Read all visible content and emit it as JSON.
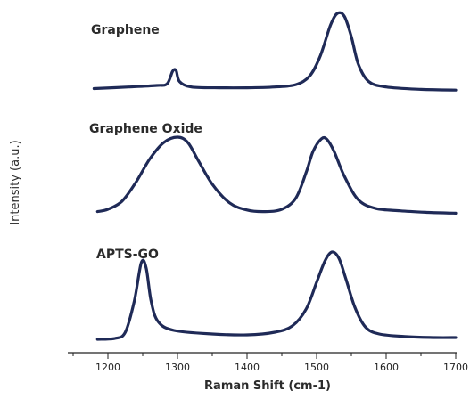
{
  "chart_data": {
    "type": "line",
    "xlabel": "Raman Shift (cm-1)",
    "ylabel": "Intensity (a.u.)",
    "xlim": [
      1180,
      1700
    ],
    "x_ticks": [
      1200,
      1300,
      1400,
      1500,
      1600,
      1700
    ],
    "y_ticks_shown": false,
    "grid": false,
    "line_color": "#1f2a57",
    "series": [
      {
        "name": "Graphene",
        "points": [
          [
            1180,
            0.04
          ],
          [
            1230,
            0.06
          ],
          [
            1270,
            0.08
          ],
          [
            1285,
            0.1
          ],
          [
            1293,
            0.26
          ],
          [
            1298,
            0.27
          ],
          [
            1303,
            0.13
          ],
          [
            1320,
            0.06
          ],
          [
            1360,
            0.05
          ],
          [
            1400,
            0.05
          ],
          [
            1440,
            0.06
          ],
          [
            1470,
            0.09
          ],
          [
            1490,
            0.2
          ],
          [
            1505,
            0.45
          ],
          [
            1520,
            0.85
          ],
          [
            1530,
            1.0
          ],
          [
            1540,
            0.96
          ],
          [
            1550,
            0.7
          ],
          [
            1560,
            0.35
          ],
          [
            1575,
            0.13
          ],
          [
            1600,
            0.06
          ],
          [
            1650,
            0.03
          ],
          [
            1700,
            0.02
          ]
        ]
      },
      {
        "name": "Graphene Oxide",
        "points": [
          [
            1185,
            0.05
          ],
          [
            1200,
            0.08
          ],
          [
            1220,
            0.18
          ],
          [
            1240,
            0.42
          ],
          [
            1260,
            0.72
          ],
          [
            1280,
            0.93
          ],
          [
            1300,
            1.0
          ],
          [
            1315,
            0.93
          ],
          [
            1330,
            0.7
          ],
          [
            1350,
            0.4
          ],
          [
            1375,
            0.16
          ],
          [
            1400,
            0.07
          ],
          [
            1425,
            0.05
          ],
          [
            1450,
            0.08
          ],
          [
            1470,
            0.22
          ],
          [
            1485,
            0.55
          ],
          [
            1495,
            0.82
          ],
          [
            1507,
            0.98
          ],
          [
            1515,
            0.97
          ],
          [
            1525,
            0.82
          ],
          [
            1540,
            0.5
          ],
          [
            1560,
            0.2
          ],
          [
            1585,
            0.09
          ],
          [
            1620,
            0.06
          ],
          [
            1660,
            0.04
          ],
          [
            1700,
            0.03
          ]
        ]
      },
      {
        "name": "APTS-GO",
        "points": [
          [
            1185,
            0.02
          ],
          [
            1210,
            0.03
          ],
          [
            1225,
            0.1
          ],
          [
            1238,
            0.45
          ],
          [
            1248,
            0.88
          ],
          [
            1255,
            0.82
          ],
          [
            1262,
            0.45
          ],
          [
            1272,
            0.22
          ],
          [
            1295,
            0.12
          ],
          [
            1350,
            0.08
          ],
          [
            1400,
            0.07
          ],
          [
            1440,
            0.1
          ],
          [
            1465,
            0.17
          ],
          [
            1485,
            0.36
          ],
          [
            1500,
            0.66
          ],
          [
            1512,
            0.9
          ],
          [
            1522,
            1.0
          ],
          [
            1532,
            0.93
          ],
          [
            1542,
            0.7
          ],
          [
            1555,
            0.38
          ],
          [
            1570,
            0.16
          ],
          [
            1590,
            0.08
          ],
          [
            1630,
            0.05
          ],
          [
            1670,
            0.04
          ],
          [
            1700,
            0.04
          ]
        ]
      }
    ]
  }
}
